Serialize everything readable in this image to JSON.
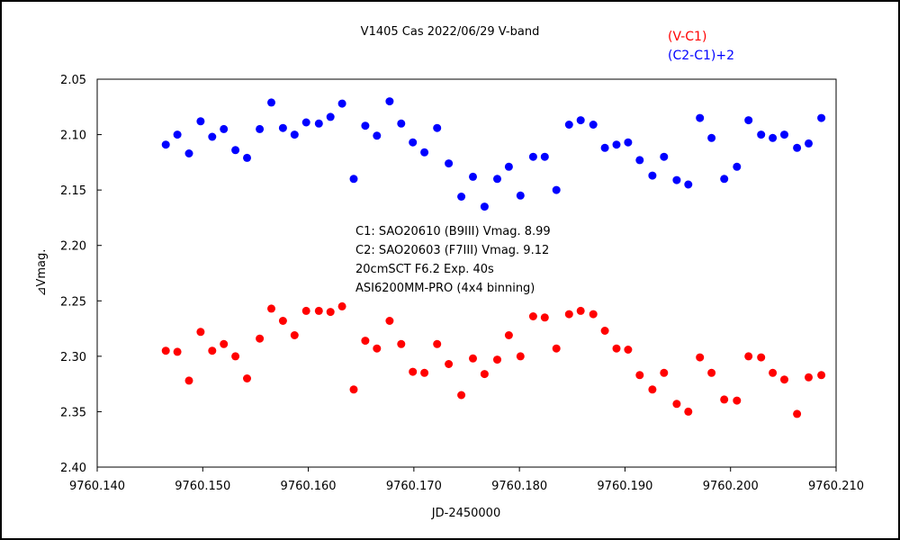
{
  "chart_data": {
    "type": "scatter",
    "title": "V1405 Cas   2022/06/29   V-band",
    "xlabel": "JD-2450000",
    "ylabel": "⊿Vmag.",
    "xlim": [
      9760.14,
      9760.21
    ],
    "ylim": [
      2.4,
      2.05
    ],
    "y_inverted": true,
    "grid": false,
    "legend_position": "top-right",
    "x_ticks": [
      "9760.140",
      "9760.150",
      "9760.160",
      "9760.170",
      "9760.180",
      "9760.190",
      "9760.200",
      "9760.210"
    ],
    "y_ticks": [
      "2.05",
      "2.10",
      "2.15",
      "2.20",
      "2.25",
      "2.30",
      "2.35",
      "2.40"
    ],
    "annotations": [
      "C1: SAO20610 (B9III) Vmag. 8.99",
      "C2: SAO20603 (F7III) Vmag. 9.12",
      "20cmSCT  F6.2  Exp. 40s",
      "ASI6200MM-PRO (4x4 binning)"
    ],
    "series": [
      {
        "name": "(V-C1)",
        "color": "#ff0000",
        "points": [
          [
            9760.1465,
            2.295
          ],
          [
            9760.1476,
            2.296
          ],
          [
            9760.1487,
            2.322
          ],
          [
            9760.1498,
            2.278
          ],
          [
            9760.1509,
            2.295
          ],
          [
            9760.152,
            2.289
          ],
          [
            9760.1531,
            2.3
          ],
          [
            9760.1542,
            2.32
          ],
          [
            9760.1554,
            2.284
          ],
          [
            9760.1565,
            2.257
          ],
          [
            9760.1576,
            2.268
          ],
          [
            9760.1587,
            2.281
          ],
          [
            9760.1598,
            2.259
          ],
          [
            9760.161,
            2.259
          ],
          [
            9760.1621,
            2.26
          ],
          [
            9760.1632,
            2.255
          ],
          [
            9760.1643,
            2.33
          ],
          [
            9760.1654,
            2.286
          ],
          [
            9760.1665,
            2.293
          ],
          [
            9760.1677,
            2.268
          ],
          [
            9760.1688,
            2.289
          ],
          [
            9760.1699,
            2.314
          ],
          [
            9760.171,
            2.315
          ],
          [
            9760.1722,
            2.289
          ],
          [
            9760.1733,
            2.307
          ],
          [
            9760.1745,
            2.335
          ],
          [
            9760.1756,
            2.302
          ],
          [
            9760.1767,
            2.316
          ],
          [
            9760.1779,
            2.303
          ],
          [
            9760.179,
            2.281
          ],
          [
            9760.1801,
            2.3
          ],
          [
            9760.1813,
            2.264
          ],
          [
            9760.1824,
            2.265
          ],
          [
            9760.1835,
            2.293
          ],
          [
            9760.1847,
            2.262
          ],
          [
            9760.1858,
            2.259
          ],
          [
            9760.187,
            2.262
          ],
          [
            9760.1881,
            2.277
          ],
          [
            9760.1892,
            2.293
          ],
          [
            9760.1903,
            2.294
          ],
          [
            9760.1914,
            2.317
          ],
          [
            9760.1926,
            2.33
          ],
          [
            9760.1937,
            2.315
          ],
          [
            9760.1949,
            2.343
          ],
          [
            9760.196,
            2.35
          ],
          [
            9760.1971,
            2.301
          ],
          [
            9760.1982,
            2.315
          ],
          [
            9760.1994,
            2.339
          ],
          [
            9760.2006,
            2.34
          ],
          [
            9760.2017,
            2.3
          ],
          [
            9760.2029,
            2.301
          ],
          [
            9760.204,
            2.315
          ],
          [
            9760.2051,
            2.321
          ],
          [
            9760.2063,
            2.352
          ],
          [
            9760.2074,
            2.319
          ],
          [
            9760.2086,
            2.317
          ]
        ]
      },
      {
        "name": "(C2-C1)+2",
        "color": "#0000ff",
        "points": [
          [
            9760.1465,
            2.109
          ],
          [
            9760.1476,
            2.1
          ],
          [
            9760.1487,
            2.117
          ],
          [
            9760.1498,
            2.088
          ],
          [
            9760.1509,
            2.102
          ],
          [
            9760.152,
            2.095
          ],
          [
            9760.1531,
            2.114
          ],
          [
            9760.1542,
            2.121
          ],
          [
            9760.1554,
            2.095
          ],
          [
            9760.1565,
            2.071
          ],
          [
            9760.1576,
            2.094
          ],
          [
            9760.1587,
            2.1
          ],
          [
            9760.1598,
            2.089
          ],
          [
            9760.161,
            2.09
          ],
          [
            9760.1621,
            2.084
          ],
          [
            9760.1632,
            2.072
          ],
          [
            9760.1643,
            2.14
          ],
          [
            9760.1654,
            2.092
          ],
          [
            9760.1665,
            2.101
          ],
          [
            9760.1677,
            2.07
          ],
          [
            9760.1688,
            2.09
          ],
          [
            9760.1699,
            2.107
          ],
          [
            9760.171,
            2.116
          ],
          [
            9760.1722,
            2.094
          ],
          [
            9760.1733,
            2.126
          ],
          [
            9760.1745,
            2.156
          ],
          [
            9760.1756,
            2.138
          ],
          [
            9760.1767,
            2.165
          ],
          [
            9760.1779,
            2.14
          ],
          [
            9760.179,
            2.129
          ],
          [
            9760.1801,
            2.155
          ],
          [
            9760.1813,
            2.12
          ],
          [
            9760.1824,
            2.12
          ],
          [
            9760.1835,
            2.15
          ],
          [
            9760.1847,
            2.091
          ],
          [
            9760.1858,
            2.087
          ],
          [
            9760.187,
            2.091
          ],
          [
            9760.1881,
            2.112
          ],
          [
            9760.1892,
            2.109
          ],
          [
            9760.1903,
            2.107
          ],
          [
            9760.1914,
            2.123
          ],
          [
            9760.1926,
            2.137
          ],
          [
            9760.1937,
            2.12
          ],
          [
            9760.1949,
            2.141
          ],
          [
            9760.196,
            2.145
          ],
          [
            9760.1971,
            2.085
          ],
          [
            9760.1982,
            2.103
          ],
          [
            9760.1994,
            2.14
          ],
          [
            9760.2006,
            2.129
          ],
          [
            9760.2017,
            2.087
          ],
          [
            9760.2029,
            2.1
          ],
          [
            9760.204,
            2.103
          ],
          [
            9760.2051,
            2.1
          ],
          [
            9760.2063,
            2.112
          ],
          [
            9760.2074,
            2.108
          ],
          [
            9760.2086,
            2.085
          ]
        ]
      }
    ]
  }
}
